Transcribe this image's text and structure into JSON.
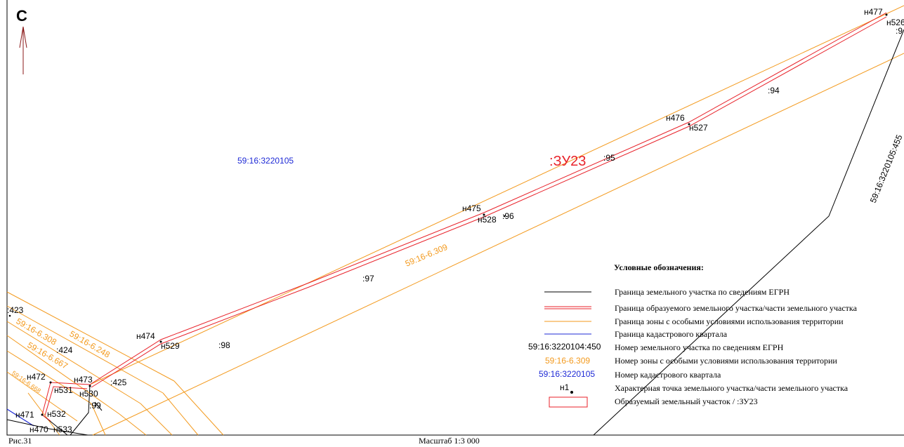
{
  "north_label": "С",
  "quarter_label": "59:16:3220105",
  "parcel_label": ":ЗУ23",
  "zone_labels": {
    "main": "59:16-6.309",
    "left1": "59:16-6.308",
    "left2": "59:16-6.248",
    "left3": "59:16-6.667",
    "left4": "59:16-6.668"
  },
  "adjacent_parcel_label": "59:16:3220105:455",
  "point_labels": {
    "n477": "н477",
    "n526": "н526",
    "n476": "н476",
    "n527": "н527",
    "n475": "н475",
    "n528": "н528",
    "n474": "н474",
    "n529": "н529",
    "n473": "н473",
    "n530": "н530",
    "n472": "н472",
    "n531": "н531",
    "n471": "н471",
    "n532": "н532",
    "n470": "н470",
    "n533": "н533"
  },
  "parcel_numbers": {
    "p94": ":94",
    "p95": ":95",
    "p96": ":96",
    "p97": ":97",
    "p98": ":98",
    "p99": ":99",
    "p423": ":423",
    "p424": ":424",
    "p425": ":425",
    "p9": ":9"
  },
  "legend": {
    "title": "Условные обозначения:",
    "items": [
      {
        "label": "Граница земельного участка по сведениям ЕГРН",
        "swatch": "line",
        "color": "#000000"
      },
      {
        "label": "Граница образуемого земельного участка/части земельного участка",
        "swatch": "double-line",
        "color": "#e8222a"
      },
      {
        "label": "Граница зоны с особыми условиями использования территории",
        "swatch": "line",
        "color": "#f39a1e"
      },
      {
        "label": "Граница кадастрового квартала",
        "swatch": "line",
        "color": "#1e2ad6"
      },
      {
        "label": "Номер земельного участка по сведениям ЕГРН",
        "sample": "59:16:3220104:450",
        "color": "#000000"
      },
      {
        "label": "Номер зоны с особыми условиями использования территории",
        "sample": "59:16-6.309",
        "color": "#f39a1e"
      },
      {
        "label": "Номер кадастрового квартала",
        "sample": "59:16:3220105",
        "color": "#1e2ad6"
      },
      {
        "label": "Характерная точка земельного участка/части земельного участка",
        "sample": "н1",
        "color": "#000000"
      },
      {
        "label": "Образуемый земельный участок / :ЗУ23",
        "swatch": "rect",
        "color": "#e8222a"
      }
    ]
  },
  "footer": {
    "figure": "Рис.31",
    "scale": "Масштаб 1:3 000"
  },
  "colors": {
    "egrn": "#000000",
    "new_parcel": "#e8222a",
    "zone": "#f39a1e",
    "quarter": "#1e2ad6",
    "north_arrow": "#8b1a1a"
  }
}
